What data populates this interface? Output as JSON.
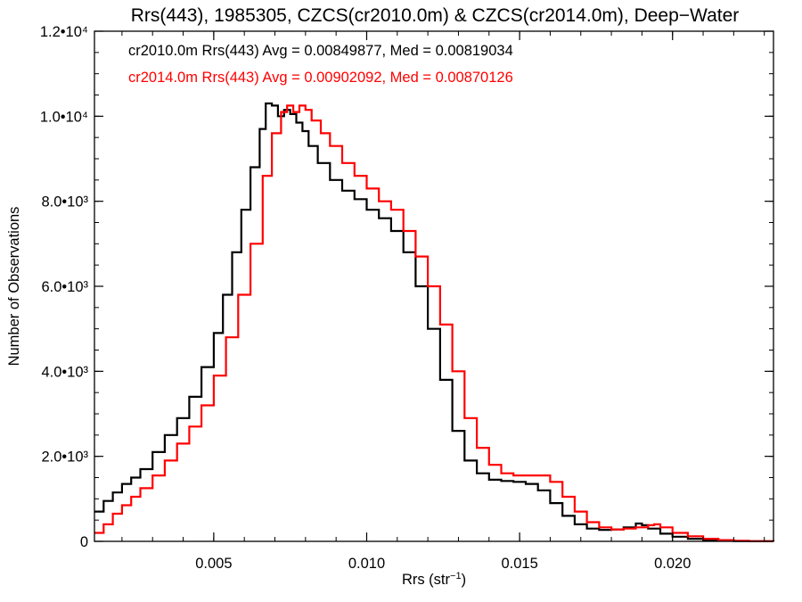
{
  "chart_data": {
    "type": "line",
    "step": true,
    "title": "Rrs(443), 1985305, CZCS(cr2010.0m) & CZCS(cr2014.0m), Deep−Water",
    "xlabel": "Rrs (str⁻¹)",
    "ylabel": "Number of Observations",
    "xlim": [
      0.0011,
      0.0233
    ],
    "ylim": [
      0,
      12000
    ],
    "x_ticks": [
      {
        "value": 0.005,
        "label": "0.005"
      },
      {
        "value": 0.01,
        "label": "0.010"
      },
      {
        "value": 0.015,
        "label": "0.015"
      },
      {
        "value": 0.02,
        "label": "0.020"
      }
    ],
    "y_ticks": [
      {
        "value": 0,
        "label": "0"
      },
      {
        "value": 2000,
        "label": "2.0•10³"
      },
      {
        "value": 4000,
        "label": "4.0•10³"
      },
      {
        "value": 6000,
        "label": "6.0•10³"
      },
      {
        "value": 8000,
        "label": "8.0•10³"
      },
      {
        "value": 10000,
        "label": "1.0•10⁴"
      },
      {
        "value": 12000,
        "label": "1.2•10⁴"
      }
    ],
    "annotations": [
      {
        "text": "cr2010.0m Rrs(443) Avg = 0.00849877, Med = 0.00819034",
        "color": "#000000"
      },
      {
        "text": "cr2014.0m Rrs(443) Avg = 0.00902092, Med = 0.00870126",
        "color": "#ff0000"
      }
    ],
    "grid": false,
    "series": [
      {
        "name": "cr2010.0m",
        "color": "#000000",
        "x": [
          0.0011,
          0.0014,
          0.0017,
          0.002,
          0.0023,
          0.0026,
          0.003,
          0.0034,
          0.0038,
          0.0042,
          0.0046,
          0.005,
          0.0053,
          0.0056,
          0.0059,
          0.0062,
          0.0065,
          0.0067,
          0.0069,
          0.0071,
          0.0073,
          0.0075,
          0.0077,
          0.0079,
          0.0081,
          0.0084,
          0.0088,
          0.0092,
          0.0096,
          0.01,
          0.0104,
          0.0108,
          0.0112,
          0.0116,
          0.012,
          0.0124,
          0.0128,
          0.0132,
          0.0136,
          0.014,
          0.0144,
          0.0148,
          0.0152,
          0.0156,
          0.016,
          0.0164,
          0.0168,
          0.0172,
          0.0176,
          0.018,
          0.0184,
          0.0188,
          0.019,
          0.0192,
          0.0196,
          0.02,
          0.0205,
          0.021,
          0.0215,
          0.022,
          0.0225,
          0.0233
        ],
        "y": [
          700,
          950,
          1150,
          1350,
          1500,
          1700,
          2100,
          2500,
          2900,
          3400,
          4100,
          4900,
          5800,
          6800,
          7800,
          8800,
          9700,
          10300,
          10250,
          10000,
          10150,
          10050,
          9850,
          9650,
          9300,
          8900,
          8500,
          8250,
          8050,
          7800,
          7600,
          7300,
          6800,
          6000,
          5000,
          3800,
          2600,
          1900,
          1600,
          1450,
          1420,
          1400,
          1350,
          1200,
          900,
          600,
          400,
          300,
          270,
          280,
          330,
          420,
          380,
          300,
          180,
          110,
          60,
          30,
          15,
          8,
          4,
          2
        ]
      },
      {
        "name": "cr2014.0m",
        "color": "#ff0000",
        "x": [
          0.0011,
          0.0014,
          0.0017,
          0.002,
          0.0023,
          0.0026,
          0.003,
          0.0034,
          0.0038,
          0.0042,
          0.0046,
          0.005,
          0.0054,
          0.0058,
          0.0062,
          0.0066,
          0.0069,
          0.0072,
          0.0074,
          0.0076,
          0.0078,
          0.008,
          0.0082,
          0.0085,
          0.0088,
          0.0092,
          0.0096,
          0.01,
          0.0104,
          0.0108,
          0.0112,
          0.0116,
          0.012,
          0.0124,
          0.0128,
          0.0132,
          0.0136,
          0.014,
          0.0144,
          0.0148,
          0.0152,
          0.0156,
          0.016,
          0.0164,
          0.0168,
          0.0172,
          0.0176,
          0.018,
          0.0184,
          0.0188,
          0.0192,
          0.0194,
          0.0196,
          0.02,
          0.0205,
          0.021,
          0.0215,
          0.022,
          0.0225,
          0.0233
        ],
        "y": [
          200,
          400,
          650,
          850,
          1050,
          1250,
          1550,
          1900,
          2300,
          2700,
          3200,
          3900,
          4800,
          5800,
          7000,
          8600,
          9600,
          10100,
          10250,
          10100,
          10250,
          10150,
          9900,
          9600,
          9300,
          8900,
          8600,
          8300,
          8000,
          7800,
          7300,
          6700,
          6000,
          5100,
          4000,
          2900,
          2200,
          1800,
          1600,
          1550,
          1550,
          1550,
          1400,
          1050,
          700,
          450,
          330,
          280,
          300,
          330,
          380,
          400,
          330,
          200,
          120,
          60,
          30,
          12,
          5,
          2
        ]
      }
    ]
  }
}
